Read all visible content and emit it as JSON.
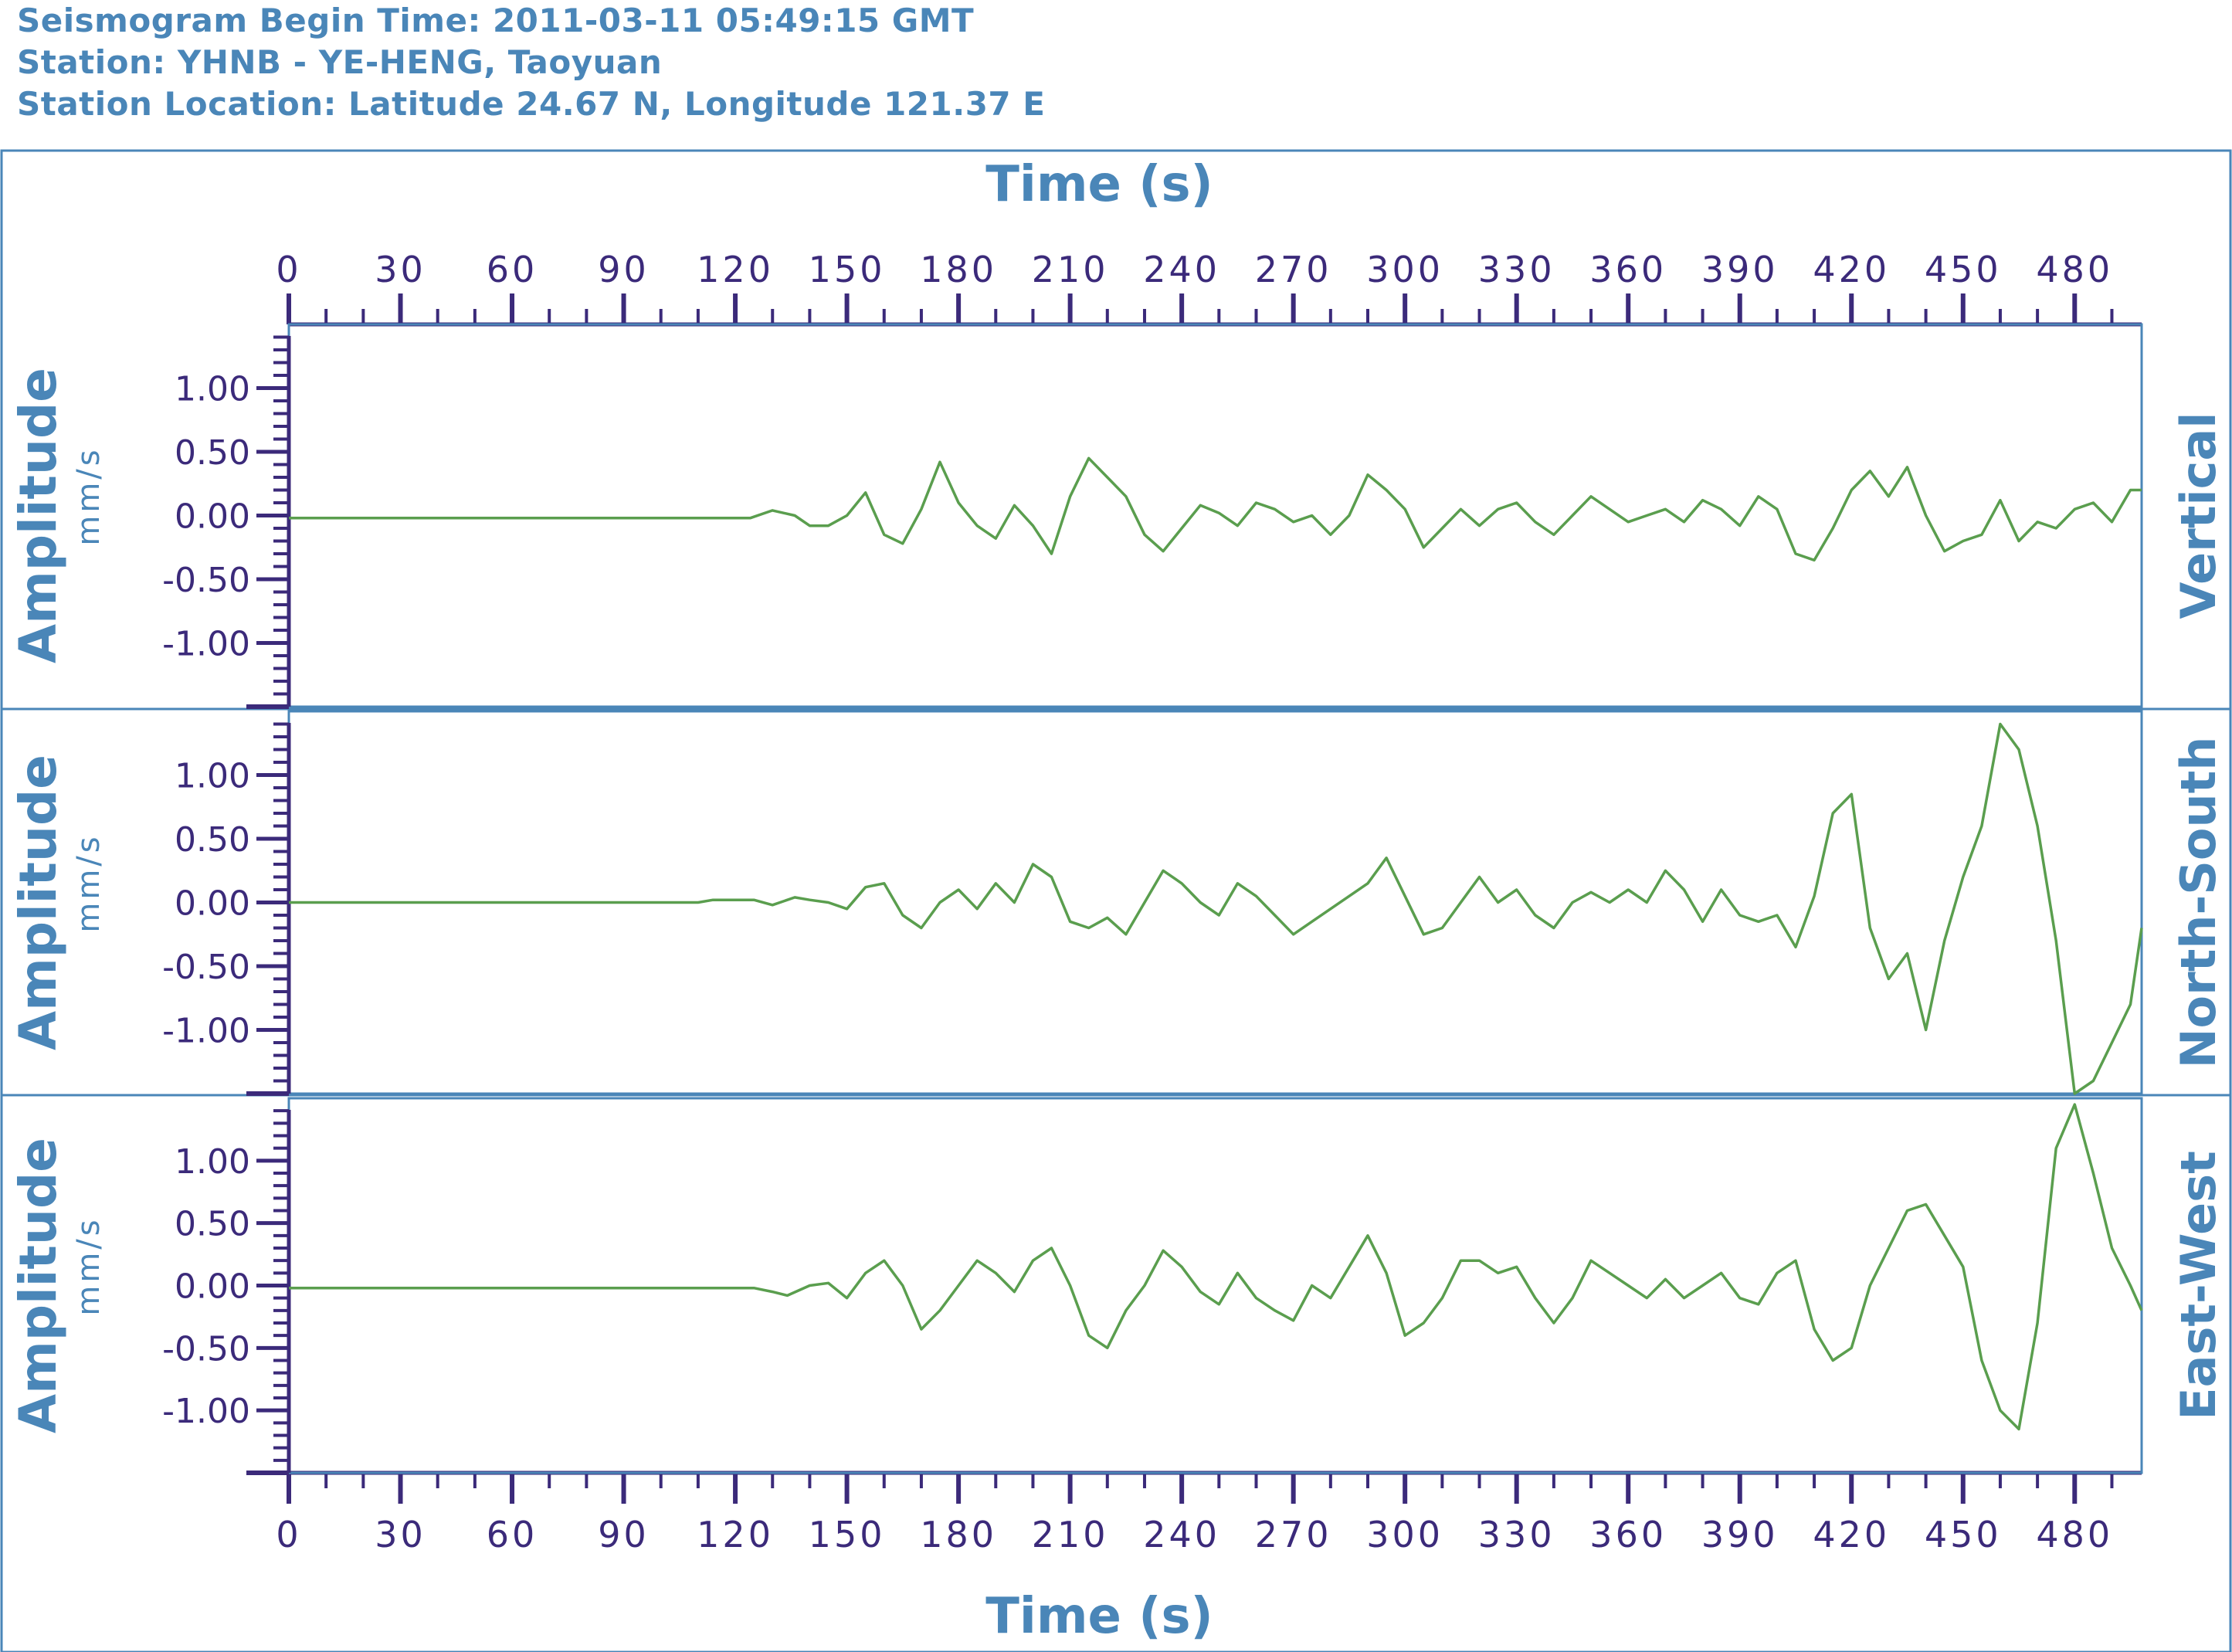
{
  "header": {
    "line1": "Seismogram Begin Time: 2011-03-11 05:49:15 GMT",
    "line2": "Station: YHNB - YE-HENG, Taoyuan",
    "line3": "Station Location: Latitude 24.67 N, Longitude 121.37 E"
  },
  "colors": {
    "accent": "#4a86b8",
    "axis": "#3b2a7a",
    "trace": "#5a9e4e",
    "frame": "#4a86b8"
  },
  "chart_data": {
    "type": "line",
    "xlabel": "Time (s)",
    "ylabel": "Amplitude",
    "yunit": "mm/s",
    "xlim": [
      0,
      498
    ],
    "ylim": [
      -1.5,
      1.5
    ],
    "x_ticks": [
      0,
      30,
      60,
      90,
      120,
      150,
      180,
      210,
      240,
      270,
      300,
      330,
      360,
      390,
      420,
      450,
      480
    ],
    "x_tick_labels": [
      "0",
      "30",
      "60",
      "90",
      "120",
      "150",
      "180",
      "210",
      "240",
      "270",
      "300",
      "330",
      "360",
      "390",
      "420",
      "450",
      "480"
    ],
    "y_ticks": [
      1.0,
      0.5,
      0.0,
      -0.5,
      -1.0
    ],
    "y_tick_labels": [
      "1.00",
      "0.50",
      "0.00",
      "-0.50",
      "-1.00"
    ],
    "grid": false,
    "series": [
      {
        "name": "Vertical",
        "x": [
          0,
          100,
          124,
          130,
          136,
          140,
          145,
          150,
          155,
          160,
          165,
          170,
          175,
          180,
          185,
          190,
          195,
          200,
          205,
          210,
          215,
          220,
          225,
          230,
          235,
          240,
          245,
          250,
          255,
          260,
          265,
          270,
          275,
          280,
          285,
          290,
          295,
          300,
          305,
          310,
          315,
          320,
          325,
          330,
          335,
          340,
          345,
          350,
          355,
          360,
          365,
          370,
          375,
          380,
          385,
          390,
          395,
          400,
          405,
          410,
          415,
          420,
          425,
          430,
          435,
          440,
          445,
          450,
          455,
          460,
          465,
          470,
          475,
          480,
          485,
          490,
          495,
          498
        ],
        "y": [
          -0.02,
          -0.02,
          -0.02,
          0.04,
          0.0,
          -0.08,
          -0.08,
          0.0,
          0.18,
          -0.15,
          -0.22,
          0.05,
          0.42,
          0.1,
          -0.08,
          -0.18,
          0.08,
          -0.08,
          -0.3,
          0.15,
          0.45,
          0.3,
          0.15,
          -0.15,
          -0.28,
          -0.1,
          0.08,
          0.02,
          -0.08,
          0.1,
          0.05,
          -0.05,
          0.0,
          -0.15,
          0.0,
          0.32,
          0.2,
          0.05,
          -0.25,
          -0.1,
          0.05,
          -0.08,
          0.05,
          0.1,
          -0.05,
          -0.15,
          0.0,
          0.15,
          0.05,
          -0.05,
          0.0,
          0.05,
          -0.05,
          0.12,
          0.05,
          -0.08,
          0.15,
          0.05,
          -0.3,
          -0.35,
          -0.1,
          0.2,
          0.35,
          0.15,
          0.38,
          0.0,
          -0.28,
          -0.2,
          -0.15,
          0.12,
          -0.2,
          -0.05,
          -0.1,
          0.05,
          0.1,
          -0.05,
          0.2,
          0.2
        ]
      },
      {
        "name": "North-South",
        "x": [
          0,
          110,
          114,
          125,
          130,
          136,
          140,
          145,
          150,
          155,
          160,
          165,
          170,
          175,
          180,
          185,
          190,
          195,
          200,
          205,
          210,
          215,
          220,
          225,
          230,
          235,
          240,
          245,
          250,
          255,
          260,
          265,
          270,
          275,
          280,
          285,
          290,
          295,
          300,
          305,
          310,
          315,
          320,
          325,
          330,
          335,
          340,
          345,
          350,
          355,
          360,
          365,
          370,
          375,
          380,
          385,
          390,
          395,
          400,
          405,
          410,
          415,
          420,
          425,
          430,
          435,
          440,
          445,
          450,
          455,
          460,
          465,
          470,
          475,
          480,
          485,
          490,
          495,
          498
        ],
        "y": [
          0.0,
          0.0,
          0.02,
          0.02,
          -0.02,
          0.04,
          0.02,
          0.0,
          -0.05,
          0.12,
          0.15,
          -0.1,
          -0.2,
          0.0,
          0.1,
          -0.05,
          0.15,
          0.0,
          0.3,
          0.2,
          -0.15,
          -0.2,
          -0.12,
          -0.25,
          0.0,
          0.25,
          0.15,
          0.0,
          -0.1,
          0.15,
          0.05,
          -0.1,
          -0.25,
          -0.15,
          -0.05,
          0.05,
          0.15,
          0.35,
          0.05,
          -0.25,
          -0.2,
          0.0,
          0.2,
          0.0,
          0.1,
          -0.1,
          -0.2,
          0.0,
          0.08,
          0.0,
          0.1,
          0.0,
          0.25,
          0.1,
          -0.15,
          0.1,
          -0.1,
          -0.15,
          -0.1,
          -0.35,
          0.05,
          0.7,
          0.85,
          -0.2,
          -0.6,
          -0.4,
          -1.0,
          -0.3,
          0.2,
          0.6,
          1.4,
          1.2,
          0.6,
          -0.3,
          -1.5,
          -1.4,
          -1.1,
          -0.8,
          -0.2
        ]
      },
      {
        "name": "East-West",
        "x": [
          0,
          125,
          130,
          134,
          140,
          145,
          150,
          155,
          160,
          165,
          170,
          175,
          180,
          185,
          190,
          195,
          200,
          205,
          210,
          215,
          220,
          225,
          230,
          235,
          240,
          245,
          250,
          255,
          260,
          265,
          270,
          275,
          280,
          285,
          290,
          295,
          300,
          305,
          310,
          315,
          320,
          325,
          330,
          335,
          340,
          345,
          350,
          355,
          360,
          365,
          370,
          375,
          380,
          385,
          390,
          395,
          400,
          405,
          410,
          415,
          420,
          425,
          430,
          435,
          440,
          445,
          450,
          455,
          460,
          465,
          470,
          475,
          480,
          485,
          490,
          495,
          498
        ],
        "y": [
          -0.02,
          -0.02,
          -0.05,
          -0.08,
          0.0,
          0.02,
          -0.1,
          0.1,
          0.2,
          0.0,
          -0.35,
          -0.2,
          0.0,
          0.2,
          0.1,
          -0.05,
          0.2,
          0.3,
          0.0,
          -0.4,
          -0.5,
          -0.2,
          0.0,
          0.28,
          0.15,
          -0.05,
          -0.15,
          0.1,
          -0.1,
          -0.2,
          -0.28,
          0.0,
          -0.1,
          0.15,
          0.4,
          0.1,
          -0.4,
          -0.3,
          -0.1,
          0.2,
          0.2,
          0.1,
          0.15,
          -0.1,
          -0.3,
          -0.1,
          0.2,
          0.1,
          0.0,
          -0.1,
          0.05,
          -0.1,
          0.0,
          0.1,
          -0.1,
          -0.15,
          0.1,
          0.2,
          -0.35,
          -0.6,
          -0.5,
          0.0,
          0.3,
          0.6,
          0.65,
          0.4,
          0.15,
          -0.6,
          -1.0,
          -1.15,
          -0.3,
          1.1,
          1.45,
          0.9,
          0.3,
          0.0,
          -0.2
        ]
      }
    ]
  }
}
